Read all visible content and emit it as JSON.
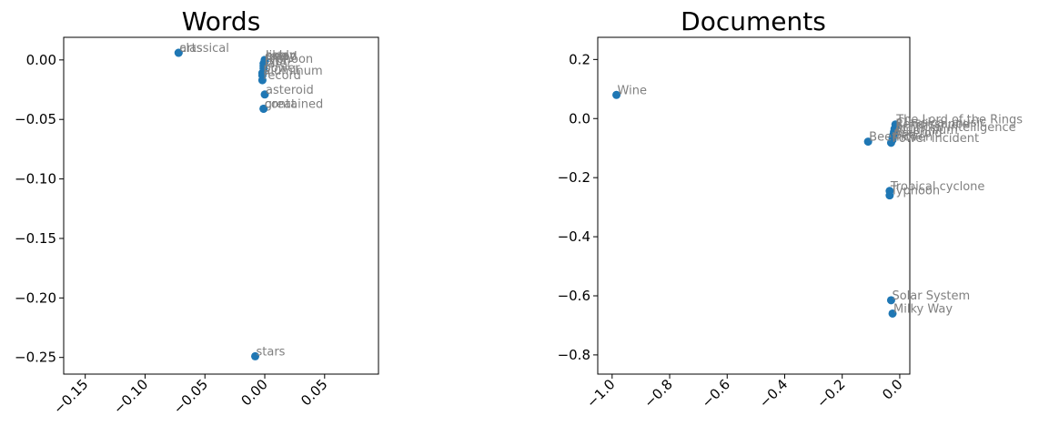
{
  "chart_data": [
    {
      "type": "scatter",
      "title": "Words",
      "xlim": [
        -0.168,
        0.095
      ],
      "ylim": [
        -0.264,
        0.019
      ],
      "xticks": [
        -0.15,
        -0.1,
        -0.05,
        0.0,
        0.05
      ],
      "xtick_labels": [
        "−0.15",
        "−0.10",
        "−0.05",
        "0.00",
        "0.05"
      ],
      "yticks": [
        0.0,
        -0.05,
        -0.1,
        -0.15,
        -0.2,
        -0.25
      ],
      "ytick_labels": [
        "0.00",
        "−0.05",
        "−0.10",
        "−0.15",
        "−0.20",
        "−0.25"
      ],
      "grid": false,
      "point_color": "#1f77b4",
      "label_color": "#808080",
      "points": [
        {
          "x": -0.072,
          "y": 0.006,
          "label": "arts"
        },
        {
          "x": -0.072,
          "y": 0.006,
          "label": "classical"
        },
        {
          "x": 0.0,
          "y": 0.0,
          "label": "solar"
        },
        {
          "x": 0.0,
          "y": 0.0,
          "label": "likely"
        },
        {
          "x": 0.0,
          "y": -0.001,
          "label": "rated"
        },
        {
          "x": 0.0,
          "y": -0.001,
          "label": "bee"
        },
        {
          "x": -0.001,
          "y": -0.003,
          "label": "typhoon"
        },
        {
          "x": -0.001,
          "y": -0.005,
          "label": "plot"
        },
        {
          "x": -0.001,
          "y": -0.007,
          "label": "later"
        },
        {
          "x": -0.002,
          "y": -0.011,
          "label": "power"
        },
        {
          "x": -0.002,
          "y": -0.013,
          "label": "aluminum"
        },
        {
          "x": -0.002,
          "y": -0.017,
          "label": "record"
        },
        {
          "x": 0.0,
          "y": -0.029,
          "label": "asteroid"
        },
        {
          "x": -0.001,
          "y": -0.041,
          "label": "great"
        },
        {
          "x": -0.001,
          "y": -0.041,
          "label": "contained"
        },
        {
          "x": -0.008,
          "y": -0.249,
          "label": "stars"
        }
      ]
    },
    {
      "type": "scatter",
      "title": "Documents",
      "xlim": [
        -1.05,
        0.035
      ],
      "ylim": [
        -0.865,
        0.275
      ],
      "xticks": [
        -1.0,
        -0.8,
        -0.6,
        -0.4,
        -0.2,
        0.0
      ],
      "xtick_labels": [
        "−1.0",
        "−0.8",
        "−0.6",
        "−0.4",
        "−0.2",
        "0.0"
      ],
      "yticks": [
        0.2,
        0.0,
        -0.2,
        -0.4,
        -0.6,
        -0.8
      ],
      "ytick_labels": [
        "0.2",
        "0.0",
        "−0.2",
        "−0.4",
        "−0.6",
        "−0.8"
      ],
      "grid": false,
      "point_color": "#1f77b4",
      "label_color": "#808080",
      "points": [
        {
          "x": -0.985,
          "y": 0.08,
          "label": "Wine"
        },
        {
          "x": -0.015,
          "y": -0.02,
          "label": "The Lord of the Rings"
        },
        {
          "x": -0.015,
          "y": -0.03,
          "label": "Classical music"
        },
        {
          "x": -0.018,
          "y": -0.035,
          "label": "Renaissance"
        },
        {
          "x": -0.02,
          "y": -0.045,
          "label": "Artificial intelligence"
        },
        {
          "x": -0.022,
          "y": -0.055,
          "label": "Aluminium"
        },
        {
          "x": -0.025,
          "y": -0.065,
          "label": "Asteroid"
        },
        {
          "x": -0.025,
          "y": -0.072,
          "label": "Bee"
        },
        {
          "x": -0.03,
          "y": -0.082,
          "label": "Power incident"
        },
        {
          "x": -0.11,
          "y": -0.078,
          "label": "Beethoven"
        },
        {
          "x": -0.035,
          "y": -0.245,
          "label": "Tropical cyclone"
        },
        {
          "x": -0.035,
          "y": -0.26,
          "label": "Typhoon"
        },
        {
          "x": -0.03,
          "y": -0.615,
          "label": "Solar System"
        },
        {
          "x": -0.025,
          "y": -0.66,
          "label": "Milky Way"
        }
      ]
    }
  ]
}
